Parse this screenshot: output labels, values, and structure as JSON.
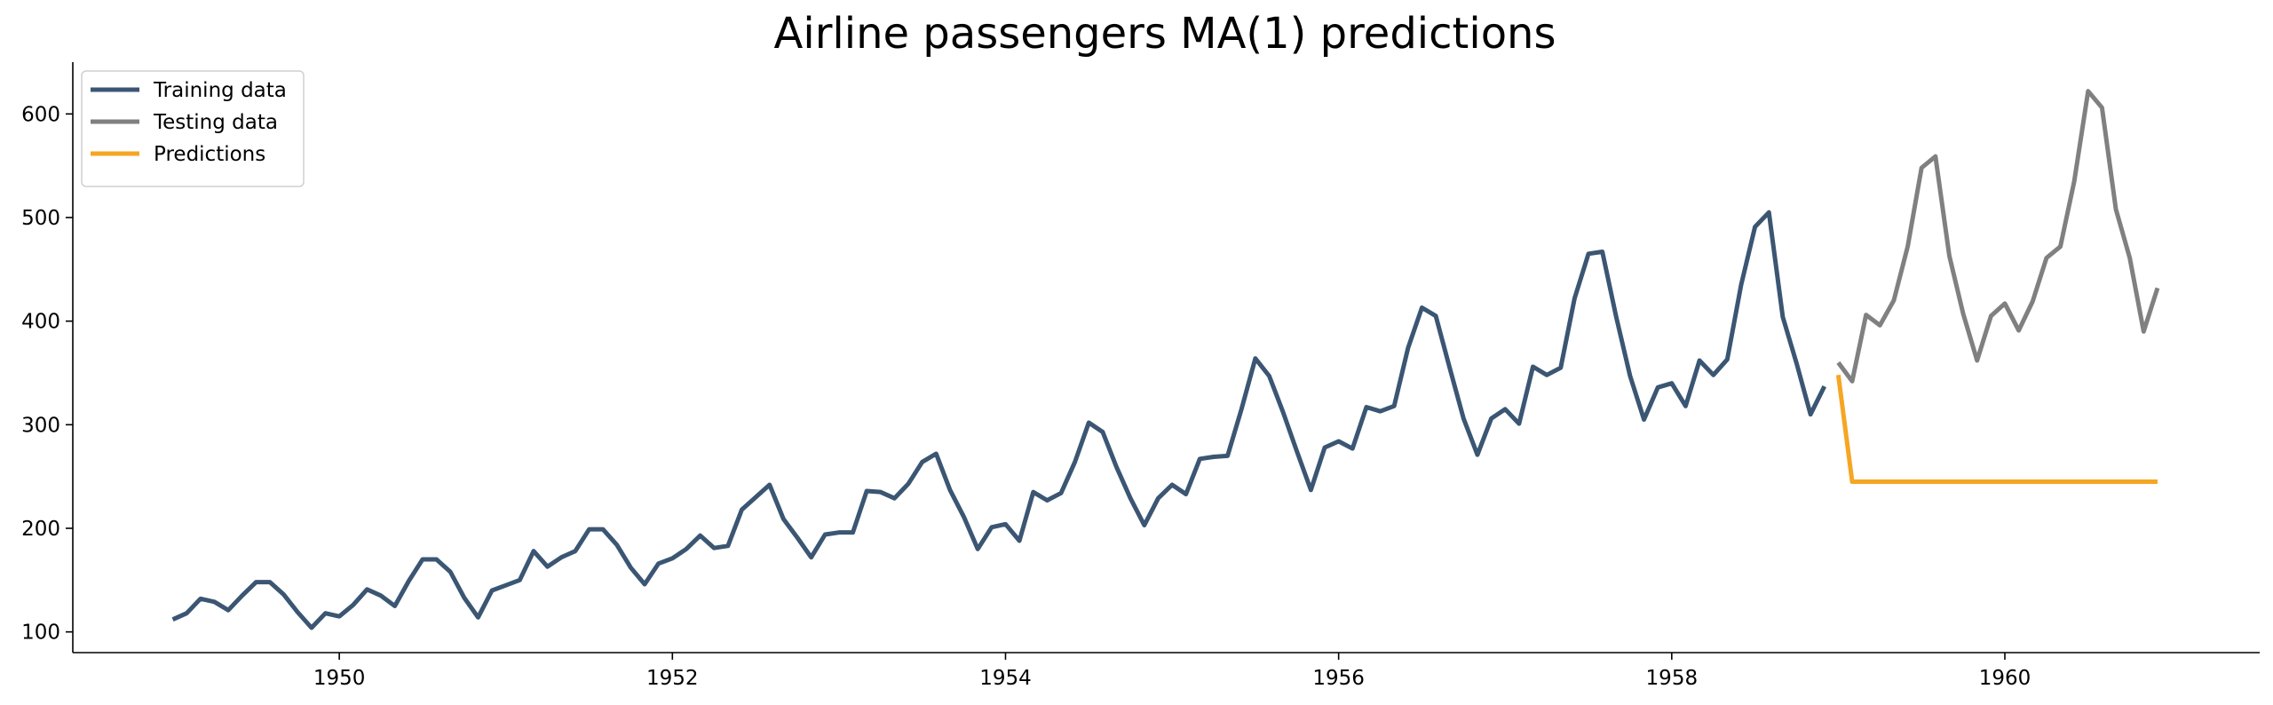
{
  "chart_data": {
    "type": "line",
    "title": "Airline passengers MA(1) predictions",
    "xlabel": "",
    "ylabel": "",
    "xlim": [
      1948.4,
      1961.53
    ],
    "ylim": [
      80,
      650
    ],
    "grid": false,
    "legend_position": "top-left",
    "x_ticks": [
      1950,
      1952,
      1954,
      1956,
      1958,
      1960
    ],
    "y_ticks": [
      100,
      200,
      300,
      400,
      500,
      600
    ],
    "series": [
      {
        "name": "Training data",
        "color": "#3b5673",
        "x_start": 1949.0,
        "x_step": 0.0833333,
        "values": [
          112,
          118,
          132,
          129,
          121,
          135,
          148,
          148,
          136,
          119,
          104,
          118,
          115,
          126,
          141,
          135,
          125,
          149,
          170,
          170,
          158,
          133,
          114,
          140,
          145,
          150,
          178,
          163,
          172,
          178,
          199,
          199,
          184,
          162,
          146,
          166,
          171,
          180,
          193,
          181,
          183,
          218,
          230,
          242,
          209,
          191,
          172,
          194,
          196,
          196,
          236,
          235,
          229,
          243,
          264,
          272,
          237,
          211,
          180,
          201,
          204,
          188,
          235,
          227,
          234,
          264,
          302,
          293,
          259,
          229,
          203,
          229,
          242,
          233,
          267,
          269,
          270,
          315,
          364,
          347,
          312,
          274,
          237,
          278,
          284,
          277,
          317,
          313,
          318,
          374,
          413,
          405,
          355,
          306,
          271,
          306,
          315,
          301,
          356,
          348,
          355,
          422,
          465,
          467,
          404,
          347,
          305,
          336,
          340,
          318,
          362,
          348,
          363,
          435,
          491,
          505,
          404,
          359,
          310,
          337
        ]
      },
      {
        "name": "Testing data",
        "color": "#808080",
        "x_start": 1959.0,
        "x_step": 0.0833333,
        "values": [
          360,
          342,
          406,
          396,
          420,
          472,
          548,
          559,
          463,
          407,
          362,
          405,
          417,
          391,
          419,
          461,
          472,
          535,
          622,
          606,
          508,
          461,
          390,
          432
        ]
      },
      {
        "name": "Predictions",
        "color": "#f5a623",
        "x_start": 1959.0,
        "x_step": 0.0833333,
        "values": [
          348,
          245,
          245,
          245,
          245,
          245,
          245,
          245,
          245,
          245,
          245,
          245,
          245,
          245,
          245,
          245,
          245,
          245,
          245,
          245,
          245,
          245,
          245,
          245
        ]
      }
    ]
  }
}
